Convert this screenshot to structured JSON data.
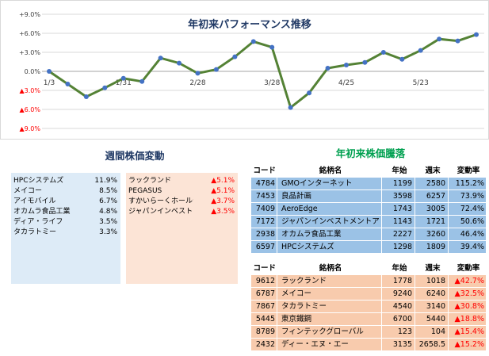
{
  "chart_data": {
    "type": "line",
    "title": "年初来パフォーマンス推移",
    "x_labels": [
      "1/3",
      "1/31",
      "2/28",
      "3/28",
      "4/25",
      "5/23"
    ],
    "y_ticks": [
      "+9.0%",
      "+6.0%",
      "+3.0%",
      "0.0%",
      "▲3.0%",
      "▲6.0%",
      "▲9.0%"
    ],
    "ylim": [
      -9,
      9
    ],
    "grid": "horizontal",
    "line_color": "#548235",
    "marker_color": "#4472c4",
    "values": [
      0.0,
      -2.0,
      -4.0,
      -2.6,
      -1.1,
      -1.6,
      2.1,
      1.3,
      -0.3,
      0.3,
      2.3,
      4.7,
      3.8,
      -5.7,
      -3.4,
      0.5,
      1.0,
      1.4,
      3.0,
      1.9,
      3.3,
      5.1,
      4.8,
      5.8
    ],
    "x_label_points": [
      0,
      4,
      8,
      12,
      16,
      20
    ]
  },
  "weekly": {
    "title": "週間株価変動",
    "up": [
      {
        "name": "HPCシステムズ",
        "value": "11.9%"
      },
      {
        "name": "メイコー",
        "value": "8.5%"
      },
      {
        "name": "アイモバイル",
        "value": "6.7%"
      },
      {
        "name": "オカムラ食品工業",
        "value": "4.8%"
      },
      {
        "name": "ディア・ライフ",
        "value": "3.5%"
      },
      {
        "name": "タカラトミー",
        "value": "3.3%"
      }
    ],
    "down": [
      {
        "name": "ラックランド",
        "value": "▲5.1%"
      },
      {
        "name": "PEGASUS",
        "value": "▲5.1%"
      },
      {
        "name": "すかいらーくホールディ",
        "value": "▲3.7%"
      },
      {
        "name": "ジャパンインベストメン",
        "value": "▲3.5%"
      }
    ]
  },
  "ytd": {
    "title": "年初来株価騰落",
    "headers": {
      "code": "コード",
      "name": "銘柄名",
      "start": "年始",
      "end": "週末",
      "change": "変動率"
    },
    "up": [
      {
        "code": "4784",
        "name": "GMOインターネット",
        "start": "1199",
        "end": "2580",
        "change": "115.2%"
      },
      {
        "code": "7453",
        "name": "良品計画",
        "start": "3598",
        "end": "6257",
        "change": "73.9%"
      },
      {
        "code": "7409",
        "name": "AeroEdge",
        "start": "1743",
        "end": "3005",
        "change": "72.4%"
      },
      {
        "code": "7172",
        "name": "ジャパンインベストメントアドバイザ",
        "start": "1143",
        "end": "1721",
        "change": "50.6%"
      },
      {
        "code": "2938",
        "name": "オカムラ食品工業",
        "start": "2227",
        "end": "3260",
        "change": "46.4%"
      },
      {
        "code": "6597",
        "name": "HPCシステムズ",
        "start": "1298",
        "end": "1809",
        "change": "39.4%"
      }
    ],
    "down": [
      {
        "code": "9612",
        "name": "ラックランド",
        "start": "1778",
        "end": "1018",
        "change": "▲42.7%"
      },
      {
        "code": "6787",
        "name": "メイコー",
        "start": "9240",
        "end": "6240",
        "change": "▲32.5%"
      },
      {
        "code": "7867",
        "name": "タカラトミー",
        "start": "4540",
        "end": "3140",
        "change": "▲30.8%"
      },
      {
        "code": "5445",
        "name": "東京鐵鋼",
        "start": "6700",
        "end": "5440",
        "change": "▲18.8%"
      },
      {
        "code": "8789",
        "name": "フィンテックグローバル",
        "start": "123",
        "end": "104",
        "change": "▲15.4%"
      },
      {
        "code": "2432",
        "name": "ディー・エヌ・エー",
        "start": "3135",
        "end": "2658.5",
        "change": "▲15.2%"
      }
    ]
  }
}
